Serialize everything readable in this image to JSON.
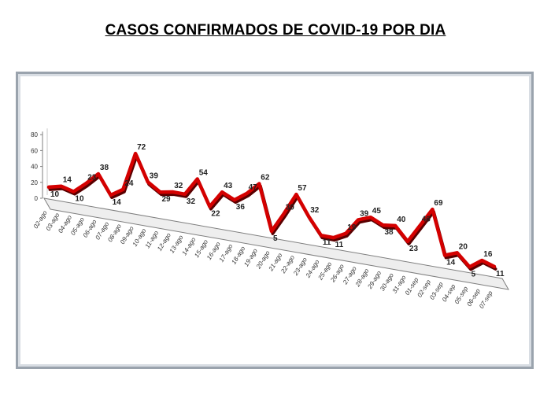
{
  "title": "CASOS CONFIRMADOS DE COVID-19 POR DIA",
  "colors": {
    "line": "#d40000",
    "line_shadow": "#5a0000",
    "axis": "#7f7f7f",
    "frame": "#9aa3ad"
  },
  "chart_data": {
    "type": "line",
    "title": "CASOS CONFIRMADOS DE COVID-19 POR DIA",
    "xlabel": "",
    "ylabel": "",
    "ylim": [
      0,
      80
    ],
    "yticks": [
      0,
      20,
      40,
      60,
      80
    ],
    "grid": false,
    "legend": "none",
    "perspective": "3d",
    "categories": [
      "02-ago",
      "03-ago",
      "04-ago",
      "05-ago",
      "06-ago",
      "07-ago",
      "08-ago",
      "09-ago",
      "10-ago",
      "11-ago",
      "12-ago",
      "13-ago",
      "14-ago",
      "15-ago",
      "16-ago",
      "17-ago",
      "18-ago",
      "19-ago",
      "20-ago",
      "21-ago",
      "22-ago",
      "23-ago",
      "24-ago",
      "25-ago",
      "26-ago",
      "27-ago",
      "28-ago",
      "29-ago",
      "30-ago",
      "31-ago",
      "01-sep",
      "02-sep",
      "03-sep",
      "04-sep",
      "05-sep",
      "06-sep",
      "07-sep"
    ],
    "series": [
      {
        "values": [
          10,
          14,
          10,
          23,
          38,
          14,
          24,
          72,
          39,
          29,
          32,
          32,
          54,
          22,
          43,
          36,
          47,
          62,
          5,
          30,
          57,
          32,
          11,
          11,
          19,
          39,
          45,
          38,
          40,
          23,
          46,
          69,
          14,
          20,
          5,
          16,
          11
        ]
      }
    ]
  }
}
